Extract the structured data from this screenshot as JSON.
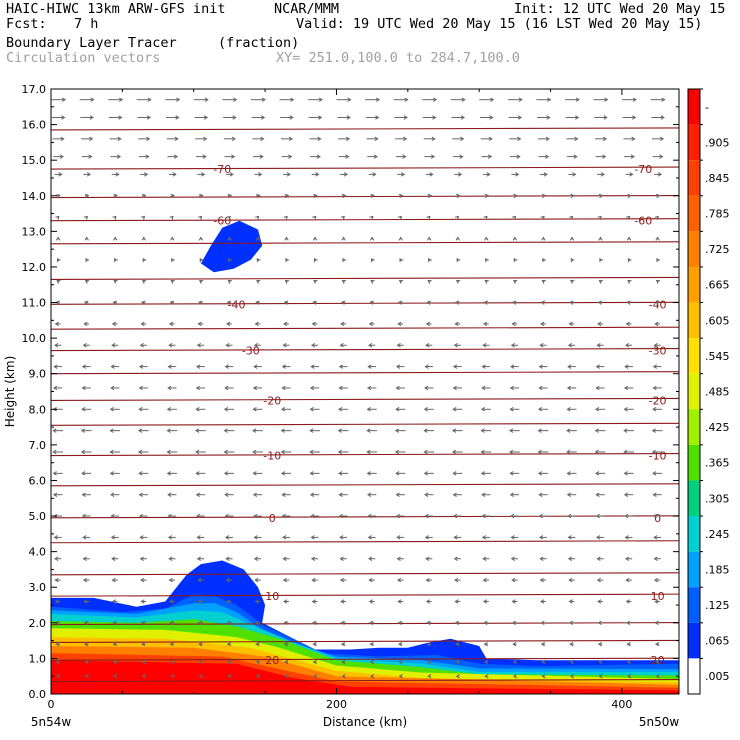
{
  "header": {
    "model": "HAIC-HIWC 13km ARW-GFS init",
    "org": "NCAR/MMM",
    "init": "Init: 12 UTC Wed 20 May 15",
    "fcst_label": "Fcst:",
    "fcst_value": "7 h",
    "valid": "Valid: 19 UTC Wed 20 May 15 (16 LST Wed 20 May 15)",
    "field": "Boundary Layer Tracer",
    "units": "(fraction)",
    "vectors": "Circulation vectors",
    "xy": "XY= 251.0,100.0 to 284.7,100.0"
  },
  "chart_data": {
    "type": "heatmap",
    "xlabel": "Distance (km)",
    "ylabel": "Height (km)",
    "xlim": [
      0,
      440
    ],
    "ylim": [
      0,
      17
    ],
    "x_ticks": [
      0,
      200,
      400
    ],
    "y_ticks": [
      "0.0",
      "1.0",
      "2.0",
      "3.0",
      "4.0",
      "5.0",
      "6.0",
      "7.0",
      "8.0",
      "9.0",
      "10.0",
      "11.0",
      "12.0",
      "13.0",
      "14.0",
      "15.0",
      "16.0",
      "17.0"
    ],
    "x_end_labels": {
      "left": "5n54w",
      "right": "5n50w"
    },
    "colorbar": {
      "labels": [
        "-",
        ".905",
        ".845",
        ".785",
        ".725",
        ".665",
        ".605",
        ".545",
        ".485",
        ".425",
        ".365",
        ".305",
        ".245",
        ".185",
        ".125",
        ".065",
        ".005"
      ],
      "colors": [
        "#ff0000",
        "#ff2000",
        "#ff4000",
        "#ff6000",
        "#ff8000",
        "#ffa000",
        "#ffc000",
        "#ffe000",
        "#e0f000",
        "#a0f000",
        "#50e000",
        "#00d080",
        "#00d0d0",
        "#00a0ff",
        "#0060ff",
        "#0030ff",
        "#ffffff"
      ]
    },
    "temperature_contours": {
      "color": "#8b1a1a",
      "levels": [
        {
          "label": "20",
          "height": 0.95,
          "label_x": [
            155,
            425
          ]
        },
        {
          "label": "10",
          "height": 2.75,
          "label_x": [
            155,
            425
          ]
        },
        {
          "label": "0",
          "height": 4.95,
          "label_x": [
            155,
            425
          ]
        },
        {
          "label": "-10",
          "height": 6.7,
          "label_x": [
            155,
            425
          ]
        },
        {
          "label": "-20",
          "height": 8.25,
          "label_x": [
            155,
            425
          ]
        },
        {
          "label": "-30",
          "height": 9.65,
          "label_x": [
            140,
            425
          ]
        },
        {
          "label": "-40",
          "height": 10.95,
          "label_x": [
            130,
            425
          ]
        },
        {
          "label": "-60",
          "height": 13.3,
          "label_x": [
            120,
            415
          ]
        },
        {
          "label": "-70",
          "height": 14.75,
          "label_x": [
            120,
            415
          ]
        }
      ],
      "unlabeled_heights": [
        0.35,
        1.45,
        1.95,
        3.35,
        4.25,
        5.85,
        7.55,
        9.0,
        10.25,
        11.65,
        12.65,
        13.95,
        15.85,
        17.0
      ]
    },
    "tracer_regions": [
      {
        "level": ".065",
        "points": [
          [
            0,
            2.7
          ],
          [
            30,
            2.7
          ],
          [
            60,
            2.45
          ],
          [
            80,
            2.6
          ],
          [
            95,
            3.35
          ],
          [
            105,
            3.65
          ],
          [
            120,
            3.75
          ],
          [
            135,
            3.5
          ],
          [
            145,
            3.0
          ],
          [
            150,
            2.5
          ],
          [
            148,
            2.0
          ],
          [
            170,
            1.55
          ],
          [
            185,
            1.25
          ],
          [
            210,
            1.25
          ],
          [
            230,
            1.3
          ],
          [
            250,
            1.3
          ],
          [
            265,
            1.45
          ],
          [
            280,
            1.55
          ],
          [
            300,
            1.35
          ],
          [
            305,
            1.0
          ],
          [
            340,
            0.95
          ],
          [
            380,
            0.95
          ],
          [
            420,
            0.95
          ],
          [
            440,
            0.95
          ],
          [
            440,
            0
          ],
          [
            0,
            0
          ]
        ]
      },
      {
        "level": ".125",
        "points": [
          [
            0,
            2.45
          ],
          [
            50,
            2.3
          ],
          [
            80,
            2.4
          ],
          [
            100,
            2.8
          ],
          [
            115,
            2.75
          ],
          [
            130,
            2.5
          ],
          [
            150,
            1.9
          ],
          [
            175,
            1.45
          ],
          [
            190,
            1.15
          ],
          [
            230,
            1.05
          ],
          [
            270,
            1.1
          ],
          [
            300,
            0.85
          ],
          [
            340,
            0.78
          ],
          [
            400,
            0.82
          ],
          [
            440,
            0.85
          ],
          [
            440,
            0
          ],
          [
            0,
            0
          ]
        ]
      },
      {
        "level": ".185",
        "points": [
          [
            0,
            2.35
          ],
          [
            60,
            2.25
          ],
          [
            100,
            2.55
          ],
          [
            115,
            2.55
          ],
          [
            130,
            2.3
          ],
          [
            150,
            1.75
          ],
          [
            180,
            1.3
          ],
          [
            200,
            1.05
          ],
          [
            260,
            0.95
          ],
          [
            300,
            0.72
          ],
          [
            440,
            0.7
          ],
          [
            440,
            0
          ],
          [
            0,
            0
          ]
        ]
      },
      {
        "level": ".245",
        "points": [
          [
            0,
            2.25
          ],
          [
            60,
            2.15
          ],
          [
            100,
            2.35
          ],
          [
            120,
            2.3
          ],
          [
            140,
            1.95
          ],
          [
            170,
            1.45
          ],
          [
            200,
            1.0
          ],
          [
            260,
            0.85
          ],
          [
            300,
            0.62
          ],
          [
            440,
            0.62
          ],
          [
            440,
            0
          ],
          [
            0,
            0
          ]
        ]
      },
      {
        "level": ".365",
        "points": [
          [
            0,
            2.05
          ],
          [
            60,
            2.0
          ],
          [
            100,
            2.1
          ],
          [
            130,
            1.9
          ],
          [
            160,
            1.55
          ],
          [
            200,
            0.95
          ],
          [
            260,
            0.75
          ],
          [
            300,
            0.55
          ],
          [
            440,
            0.52
          ],
          [
            440,
            0
          ],
          [
            0,
            0
          ]
        ]
      },
      {
        "level": ".485",
        "points": [
          [
            0,
            1.85
          ],
          [
            80,
            1.8
          ],
          [
            130,
            1.6
          ],
          [
            160,
            1.3
          ],
          [
            200,
            0.8
          ],
          [
            260,
            0.6
          ],
          [
            440,
            0.42
          ],
          [
            440,
            0
          ],
          [
            0,
            0
          ]
        ]
      },
      {
        "level": ".605",
        "points": [
          [
            0,
            1.6
          ],
          [
            80,
            1.55
          ],
          [
            140,
            1.3
          ],
          [
            200,
            0.65
          ],
          [
            260,
            0.45
          ],
          [
            440,
            0.33
          ],
          [
            440,
            0
          ],
          [
            0,
            0
          ]
        ]
      },
      {
        "level": ".725",
        "points": [
          [
            0,
            1.35
          ],
          [
            100,
            1.3
          ],
          [
            150,
            1.05
          ],
          [
            200,
            0.5
          ],
          [
            440,
            0.26
          ],
          [
            440,
            0
          ],
          [
            0,
            0
          ]
        ]
      },
      {
        "level": ".845",
        "points": [
          [
            0,
            1.15
          ],
          [
            120,
            1.05
          ],
          [
            160,
            0.7
          ],
          [
            200,
            0.35
          ],
          [
            440,
            0.18
          ],
          [
            440,
            0
          ],
          [
            0,
            0
          ]
        ]
      },
      {
        "level": "-",
        "points": [
          [
            0,
            0.95
          ],
          [
            130,
            0.85
          ],
          [
            170,
            0.45
          ],
          [
            210,
            0.2
          ],
          [
            440,
            0.1
          ],
          [
            440,
            0
          ],
          [
            0,
            0
          ]
        ]
      },
      {
        "level": ".065",
        "points": [
          [
            105,
            12.1
          ],
          [
            112,
            12.6
          ],
          [
            120,
            13.1
          ],
          [
            132,
            13.3
          ],
          [
            145,
            13.05
          ],
          [
            148,
            12.6
          ],
          [
            140,
            12.2
          ],
          [
            128,
            11.95
          ],
          [
            114,
            11.85
          ]
        ]
      }
    ],
    "wind_vectors": {
      "x_positions": [
        5,
        25,
        45,
        65,
        85,
        105,
        125,
        145,
        165,
        185,
        205,
        225,
        245,
        265,
        285,
        305,
        325,
        345,
        365,
        385,
        405,
        425
      ],
      "y_rows": [
        {
          "h": 16.7,
          "u": 1.0,
          "w": 0.0
        },
        {
          "h": 16.2,
          "u": 0.9,
          "w": 0.0
        },
        {
          "h": 15.6,
          "u": 0.8,
          "w": 0.0
        },
        {
          "h": 15.1,
          "u": 0.7,
          "w": 0.0
        },
        {
          "h": 14.6,
          "u": 0.5,
          "w": 0.0
        },
        {
          "h": 14.0,
          "u": 0.25,
          "w": 0.05
        },
        {
          "h": 13.4,
          "u": 0.1,
          "w": 0.1
        },
        {
          "h": 12.8,
          "u": 0.0,
          "w": 0.15
        },
        {
          "h": 12.2,
          "u": -0.1,
          "w": 0.15
        },
        {
          "h": 11.6,
          "u": -0.15,
          "w": 0.1
        },
        {
          "h": 11.0,
          "u": -0.25,
          "w": 0.05
        },
        {
          "h": 10.4,
          "u": -0.35,
          "w": 0.0
        },
        {
          "h": 9.8,
          "u": -0.45,
          "w": 0.0
        },
        {
          "h": 9.2,
          "u": -0.55,
          "w": 0.0
        },
        {
          "h": 8.6,
          "u": -0.6,
          "w": 0.0
        },
        {
          "h": 8.0,
          "u": -0.65,
          "w": 0.0
        },
        {
          "h": 7.4,
          "u": -0.7,
          "w": 0.0
        },
        {
          "h": 6.8,
          "u": -0.7,
          "w": 0.0
        },
        {
          "h": 6.2,
          "u": -0.65,
          "w": 0.0
        },
        {
          "h": 5.6,
          "u": -0.6,
          "w": 0.0
        },
        {
          "h": 5.0,
          "u": -0.55,
          "w": 0.0
        },
        {
          "h": 4.4,
          "u": -0.5,
          "w": 0.0
        },
        {
          "h": 3.8,
          "u": -0.45,
          "w": 0.0
        },
        {
          "h": 3.2,
          "u": -0.4,
          "w": 0.0
        },
        {
          "h": 2.6,
          "u": -0.35,
          "w": 0.0
        },
        {
          "h": 2.0,
          "u": -0.3,
          "w": 0.0
        },
        {
          "h": 1.4,
          "u": -0.25,
          "w": 0.0
        },
        {
          "h": 0.9,
          "u": -0.2,
          "w": 0.0
        },
        {
          "h": 0.5,
          "u": -0.15,
          "w": 0.0
        }
      ],
      "color": "#666666"
    },
    "grid": false,
    "legend": "colorbar-right"
  }
}
